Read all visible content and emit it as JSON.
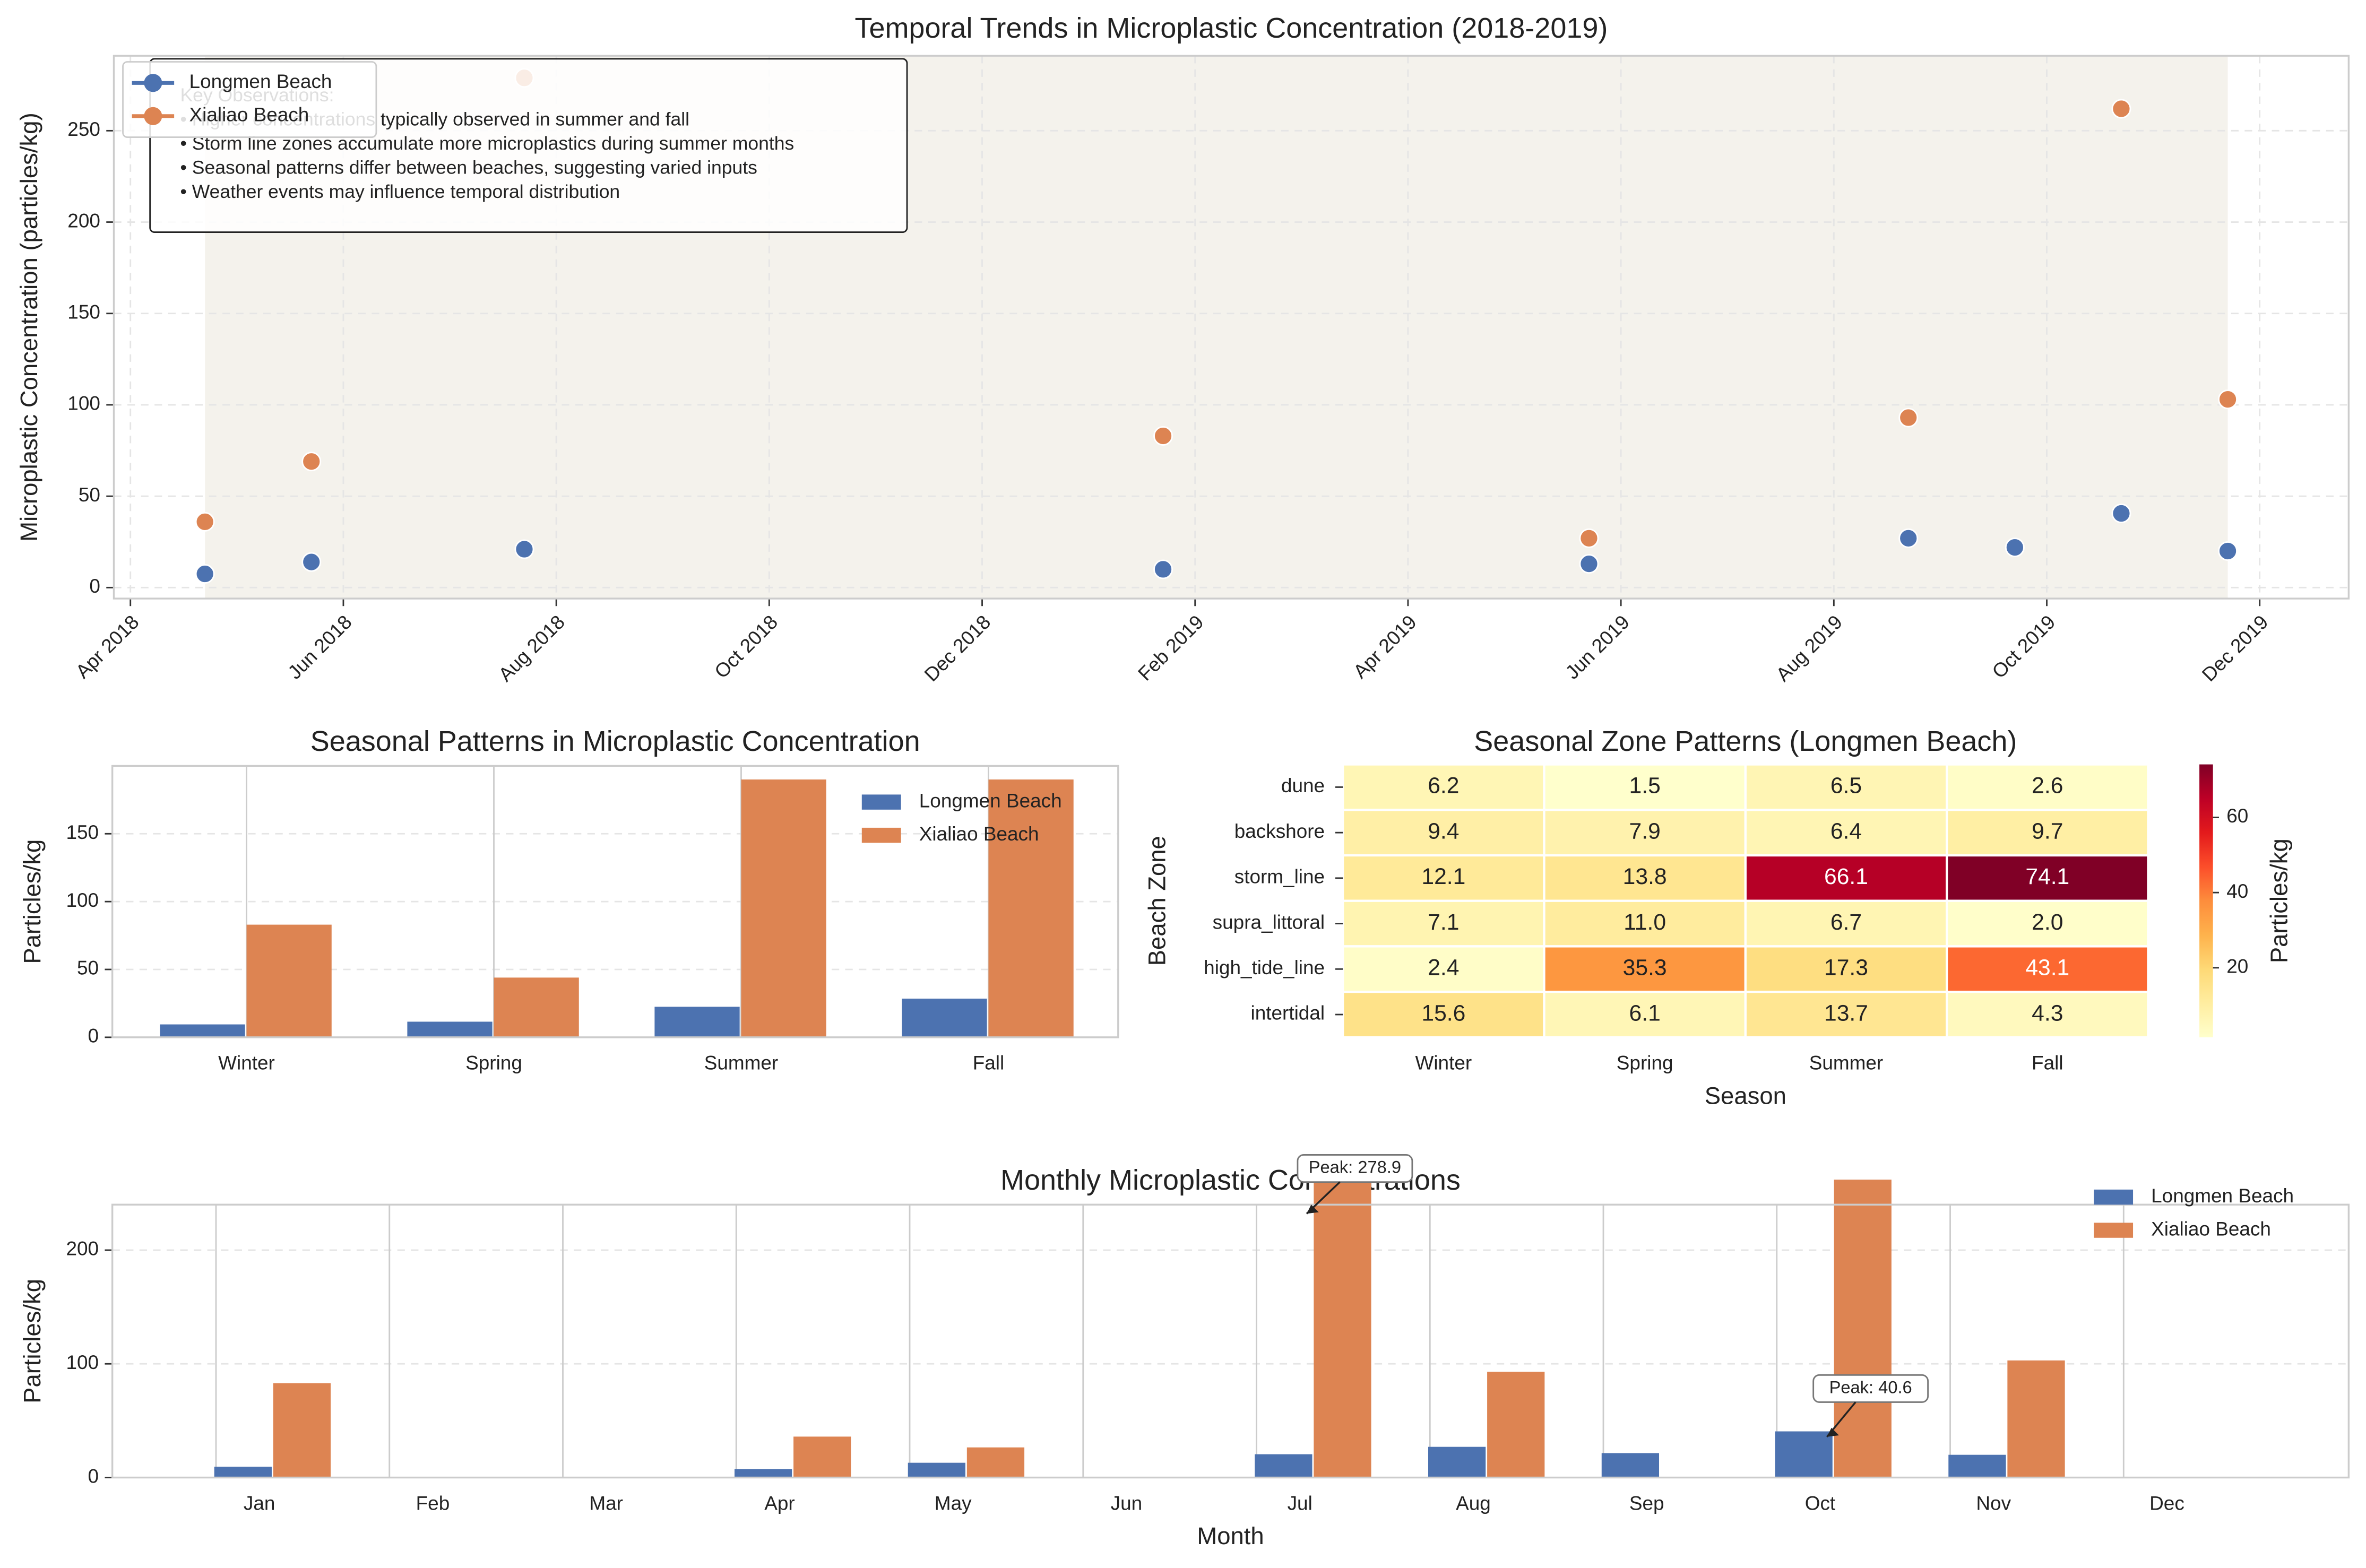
{
  "chart_data": [
    {
      "type": "scatter",
      "title": "Temporal Trends in Microplastic Concentration (2018-2019)",
      "ylabel": "Microplastic Concentration (particles/kg)",
      "series": [
        {
          "name": "Longmen Beach",
          "color": "#4c72b0",
          "x": [
            "2018-04",
            "2018-05",
            "2018-07",
            "2019-01",
            "2019-05",
            "2019-08",
            "2019-09",
            "2019-10",
            "2019-11"
          ],
          "values": [
            7.5,
            14,
            21,
            10,
            13,
            27,
            22,
            40.6,
            20
          ]
        },
        {
          "name": "Xialiao Beach",
          "color": "#dd8452",
          "x": [
            "2018-04",
            "2018-05",
            "2018-07",
            "2019-01",
            "2019-05",
            "2019-08",
            "2019-10",
            "2019-11"
          ],
          "values": [
            36,
            69,
            278.9,
            83,
            27,
            93,
            262,
            103
          ]
        }
      ],
      "xlim": [
        "2018-04",
        "2019-12"
      ],
      "xticks": [
        {
          "value": "2018-04",
          "label": "Apr 2018"
        },
        {
          "value": "2018-06",
          "label": "Jun 2018"
        },
        {
          "value": "2018-08",
          "label": "Aug 2018"
        },
        {
          "value": "2018-10",
          "label": "Oct 2018"
        },
        {
          "value": "2018-12",
          "label": "Dec 2018"
        },
        {
          "value": "2019-02",
          "label": "Feb 2019"
        },
        {
          "value": "2019-04",
          "label": "Apr 2019"
        },
        {
          "value": "2019-06",
          "label": "Jun 2019"
        },
        {
          "value": "2019-08",
          "label": "Aug 2019"
        },
        {
          "value": "2019-10",
          "label": "Oct 2019"
        },
        {
          "value": "2019-12",
          "label": "Dec 2019"
        }
      ],
      "ylim": [
        -6,
        291
      ],
      "yticks": [
        0,
        50,
        100,
        150,
        200,
        250
      ],
      "grid": true,
      "annotation": {
        "title": "Key Observations:",
        "lines": [
          "• Higher concentrations typically observed in summer and fall",
          "• Storm line zones accumulate more microplastics during summer months",
          "• Seasonal patterns differ between beaches, suggesting varied inputs",
          "• Weather events may influence temporal distribution"
        ]
      },
      "legend": "upper left"
    },
    {
      "type": "bar",
      "title": "Seasonal Patterns in Microplastic Concentration",
      "ylabel": "Particles/kg",
      "categories": [
        "Winter",
        "Spring",
        "Summer",
        "Fall"
      ],
      "series": [
        {
          "name": "Longmen Beach",
          "color": "#4c72b0",
          "values": [
            9.5,
            11.5,
            22.5,
            28.5
          ]
        },
        {
          "name": "Xialiao Beach",
          "color": "#dd8452",
          "values": [
            83,
            44,
            190,
            190
          ]
        }
      ],
      "ylim": [
        0,
        200
      ],
      "yticks": [
        0,
        50,
        100,
        150
      ],
      "grid": true,
      "legend": "upper right"
    },
    {
      "type": "heatmap",
      "title": "Seasonal Zone Patterns (Longmen Beach)",
      "xlabel": "Season",
      "ylabel": "Beach Zone",
      "columns": [
        "Winter",
        "Spring",
        "Summer",
        "Fall"
      ],
      "rows": [
        "dune",
        "backshore",
        "storm_line",
        "supra_littoral",
        "high_tide_line",
        "intertidal"
      ],
      "values": [
        [
          6.2,
          1.5,
          6.5,
          2.6
        ],
        [
          9.4,
          7.9,
          6.4,
          9.7
        ],
        [
          12.1,
          13.8,
          66.1,
          74.1
        ],
        [
          7.1,
          11.0,
          6.7,
          2.0
        ],
        [
          2.4,
          35.3,
          17.3,
          43.1
        ],
        [
          15.6,
          6.1,
          13.7,
          4.3
        ]
      ],
      "value_labels": [
        [
          "6.2",
          "1.5",
          "6.5",
          "2.6"
        ],
        [
          "9.4",
          "7.9",
          "6.4",
          "9.7"
        ],
        [
          "12.1",
          "13.8",
          "66.1",
          "74.1"
        ],
        [
          "7.1",
          "11.0",
          "6.7",
          "2.0"
        ],
        [
          "2.4",
          "35.3",
          "17.3",
          "43.1"
        ],
        [
          "15.6",
          "6.1",
          "13.7",
          "4.3"
        ]
      ],
      "colormap": "YlOrRd",
      "colorbar_label": "Particles/kg",
      "colorbar_ticks": [
        20,
        40,
        60
      ]
    },
    {
      "type": "bar",
      "title": "Monthly Microplastic Concentrations",
      "xlabel": "Month",
      "ylabel": "Particles/kg",
      "categories": [
        "Jan",
        "Feb",
        "Mar",
        "Apr",
        "May",
        "Jun",
        "Jul",
        "Aug",
        "Sep",
        "Oct",
        "Nov",
        "Dec"
      ],
      "series": [
        {
          "name": "Longmen Beach",
          "color": "#4c72b0",
          "values": [
            9.5,
            null,
            null,
            7.5,
            13,
            null,
            20.5,
            27,
            21.5,
            40.6,
            20,
            null
          ]
        },
        {
          "name": "Xialiao Beach",
          "color": "#dd8452",
          "values": [
            83,
            null,
            null,
            36,
            26.5,
            null,
            278.9,
            93,
            null,
            262,
            103,
            null
          ]
        }
      ],
      "ylim": [
        0,
        240
      ],
      "yticks": [
        0,
        100,
        200
      ],
      "grid": true,
      "legend": "upper right",
      "annotations": [
        "Peak: 278.9",
        "Peak: 40.6"
      ]
    }
  ]
}
